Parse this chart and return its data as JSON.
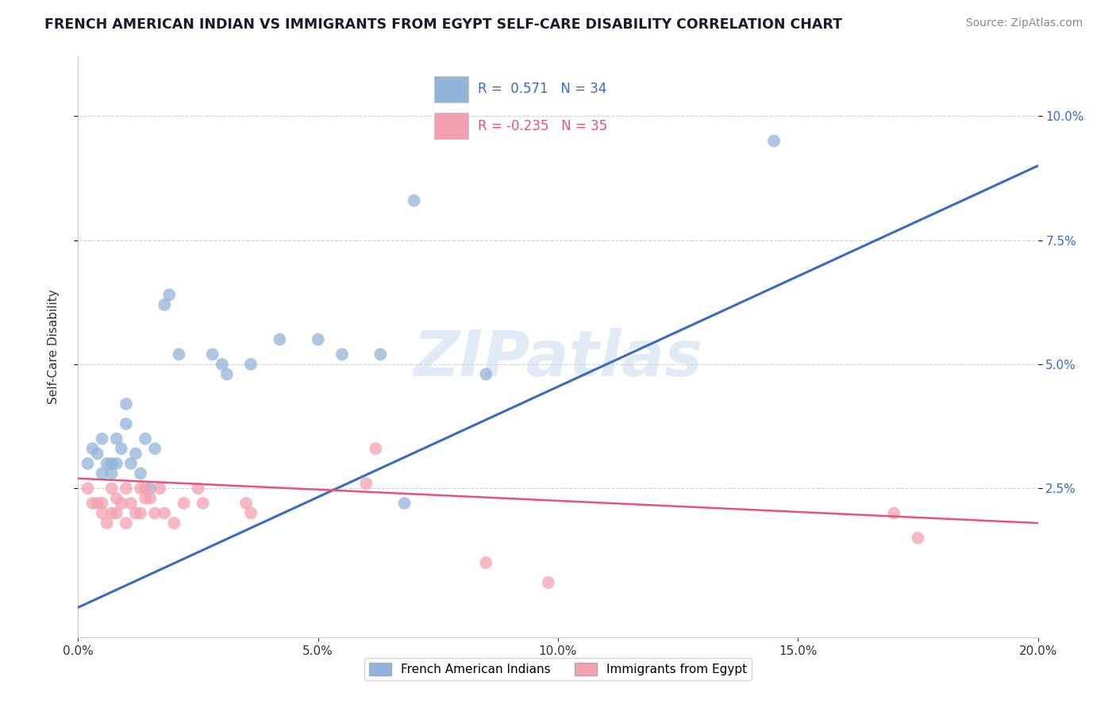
{
  "title": "FRENCH AMERICAN INDIAN VS IMMIGRANTS FROM EGYPT SELF-CARE DISABILITY CORRELATION CHART",
  "source": "Source: ZipAtlas.com",
  "ylabel": "Self-Care Disability",
  "xlim": [
    0.0,
    0.2
  ],
  "ylim": [
    -0.005,
    0.112
  ],
  "xticks": [
    0.0,
    0.05,
    0.1,
    0.15,
    0.2
  ],
  "yticks_right": [
    0.025,
    0.05,
    0.075,
    0.1
  ],
  "blue_label": "French American Indians",
  "pink_label": "Immigrants from Egypt",
  "blue_R": 0.571,
  "blue_N": 34,
  "pink_R": -0.235,
  "pink_N": 35,
  "watermark": "ZIPatlas",
  "blue_color": "#92b4d8",
  "pink_color": "#f4a0b0",
  "blue_line_color": "#3a6bbf",
  "pink_line_color": "#e8527a",
  "blue_trendline": [
    [
      0.0,
      0.001
    ],
    [
      0.2,
      0.09
    ]
  ],
  "pink_trendline": [
    [
      0.0,
      0.027
    ],
    [
      0.2,
      0.018
    ]
  ],
  "blue_scatter": [
    [
      0.002,
      0.03
    ],
    [
      0.003,
      0.033
    ],
    [
      0.004,
      0.032
    ],
    [
      0.005,
      0.035
    ],
    [
      0.005,
      0.028
    ],
    [
      0.006,
      0.03
    ],
    [
      0.007,
      0.03
    ],
    [
      0.007,
      0.028
    ],
    [
      0.008,
      0.035
    ],
    [
      0.008,
      0.03
    ],
    [
      0.009,
      0.033
    ],
    [
      0.01,
      0.038
    ],
    [
      0.01,
      0.042
    ],
    [
      0.011,
      0.03
    ],
    [
      0.012,
      0.032
    ],
    [
      0.013,
      0.028
    ],
    [
      0.014,
      0.035
    ],
    [
      0.015,
      0.025
    ],
    [
      0.016,
      0.033
    ],
    [
      0.018,
      0.062
    ],
    [
      0.019,
      0.064
    ],
    [
      0.021,
      0.052
    ],
    [
      0.028,
      0.052
    ],
    [
      0.03,
      0.05
    ],
    [
      0.031,
      0.048
    ],
    [
      0.036,
      0.05
    ],
    [
      0.042,
      0.055
    ],
    [
      0.05,
      0.055
    ],
    [
      0.055,
      0.052
    ],
    [
      0.063,
      0.052
    ],
    [
      0.068,
      0.022
    ],
    [
      0.07,
      0.083
    ],
    [
      0.085,
      0.048
    ],
    [
      0.145,
      0.095
    ]
  ],
  "pink_scatter": [
    [
      0.002,
      0.025
    ],
    [
      0.003,
      0.022
    ],
    [
      0.004,
      0.022
    ],
    [
      0.005,
      0.02
    ],
    [
      0.005,
      0.022
    ],
    [
      0.006,
      0.018
    ],
    [
      0.007,
      0.02
    ],
    [
      0.007,
      0.025
    ],
    [
      0.008,
      0.023
    ],
    [
      0.008,
      0.02
    ],
    [
      0.009,
      0.022
    ],
    [
      0.01,
      0.018
    ],
    [
      0.01,
      0.025
    ],
    [
      0.011,
      0.022
    ],
    [
      0.012,
      0.02
    ],
    [
      0.013,
      0.025
    ],
    [
      0.013,
      0.02
    ],
    [
      0.014,
      0.025
    ],
    [
      0.014,
      0.023
    ],
    [
      0.015,
      0.023
    ],
    [
      0.016,
      0.02
    ],
    [
      0.017,
      0.025
    ],
    [
      0.018,
      0.02
    ],
    [
      0.02,
      0.018
    ],
    [
      0.022,
      0.022
    ],
    [
      0.025,
      0.025
    ],
    [
      0.026,
      0.022
    ],
    [
      0.035,
      0.022
    ],
    [
      0.036,
      0.02
    ],
    [
      0.06,
      0.026
    ],
    [
      0.062,
      0.033
    ],
    [
      0.085,
      0.01
    ],
    [
      0.098,
      0.006
    ],
    [
      0.17,
      0.02
    ],
    [
      0.175,
      0.015
    ]
  ]
}
